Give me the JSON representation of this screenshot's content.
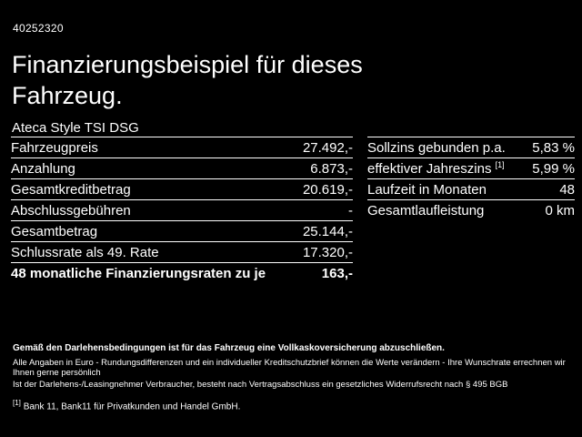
{
  "page": {
    "id_number": "40252320",
    "title_line1": "Finanzierungsbeispiel für dieses",
    "title_line2": "Fahrzeug.",
    "vehicle_name": "Ateca Style TSI DSG"
  },
  "left_table": {
    "rows": [
      {
        "label": "Fahrzeugpreis",
        "value": "27.492,-"
      },
      {
        "label": "Anzahlung",
        "value": "6.873,-"
      },
      {
        "label": "Gesamtkreditbetrag",
        "value": "20.619,-"
      },
      {
        "label": "Abschlussgebühren",
        "value": "-"
      },
      {
        "label": "Gesamtbetrag",
        "value": "25.144,-"
      },
      {
        "label": "Schlussrate als 49. Rate",
        "value": "17.320,-"
      },
      {
        "label": "48 monatliche Finanzierungsraten zu je",
        "value": "163,-"
      }
    ]
  },
  "right_table": {
    "rows": [
      {
        "label": "Sollzins gebunden p.a.",
        "value": "5,83 %"
      },
      {
        "label": "effektiver Jahreszins",
        "marker": "[1]",
        "value": "5,99 %"
      },
      {
        "label": "Laufzeit in Monaten",
        "value": "48"
      },
      {
        "label": "Gesamtlaufleistung",
        "value": "0 km"
      }
    ]
  },
  "footnotes": {
    "line1": "Gemäß den Darlehensbedingungen ist für das Fahrzeug eine Vollkaskoversicherung abzuschließen.",
    "line2": "Alle Angaben in Euro - Rundungsdifferenzen und ein individueller Kreditschutzbrief können die Werte verändern - Ihre Wunschrate errechnen wir Ihnen gerne persönlich",
    "line3": "Ist der Darlehens-/Leasingnehmer Verbraucher, besteht nach Vertragsabschluss ein gesetzliches Widerrufsrecht nach § 495 BGB",
    "bank_marker": "[1]",
    "bank_text": "Bank 11, Bank11 für Privatkunden und Handel GmbH."
  },
  "colors": {
    "background": "#000000",
    "text": "#ffffff",
    "divider": "#ffffff"
  }
}
